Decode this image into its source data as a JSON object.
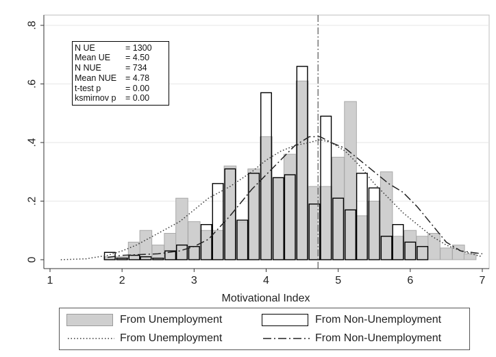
{
  "chart_data": {
    "type": "bar",
    "xlabel": "Motivational Index",
    "ylabel": "",
    "xlim": [
      1,
      7
    ],
    "ylim": [
      0,
      0.8
    ],
    "xticks": [
      "1",
      "2",
      "3",
      "4",
      "5",
      "6",
      "7"
    ],
    "yticks": [
      "0",
      ".2",
      ".4",
      ".6",
      ".8"
    ],
    "grid": true,
    "vline_x": 4.72,
    "bin_width": 0.1667,
    "series": [
      {
        "name": "From Unemployment",
        "kind": "histogram",
        "color": "#cfcfcf",
        "x": [
          1.83,
          2.0,
          2.17,
          2.33,
          2.5,
          2.67,
          2.83,
          3.0,
          3.17,
          3.33,
          3.5,
          3.67,
          3.83,
          4.0,
          4.17,
          4.33,
          4.5,
          4.67,
          4.83,
          5.0,
          5.17,
          5.33,
          5.5,
          5.67,
          5.83,
          6.0,
          6.17,
          6.33,
          6.5,
          6.67,
          6.83
        ],
        "values": [
          0.01,
          0.01,
          0.06,
          0.1,
          0.05,
          0.09,
          0.21,
          0.13,
          0.1,
          0.1,
          0.32,
          0.13,
          0.31,
          0.42,
          0.28,
          0.36,
          0.61,
          0.25,
          0.25,
          0.35,
          0.54,
          0.15,
          0.2,
          0.3,
          0.08,
          0.1,
          0.08,
          0.09,
          0.04,
          0.05,
          0.02
        ]
      },
      {
        "name": "From Non-Unemployment",
        "kind": "histogram",
        "color": "#ffffff",
        "x": [
          1.83,
          2.0,
          2.17,
          2.33,
          2.5,
          2.67,
          2.83,
          3.0,
          3.17,
          3.33,
          3.5,
          3.67,
          3.83,
          4.0,
          4.17,
          4.33,
          4.5,
          4.67,
          4.83,
          5.0,
          5.17,
          5.33,
          5.5,
          5.67,
          5.83,
          6.0,
          6.17,
          6.33,
          6.5,
          6.67,
          6.83
        ],
        "values": [
          0.025,
          0.005,
          0.015,
          0.01,
          0.005,
          0.03,
          0.05,
          0.045,
          0.12,
          0.26,
          0.31,
          0.135,
          0.295,
          0.57,
          0.28,
          0.29,
          0.66,
          0.19,
          0.49,
          0.21,
          0.17,
          0.295,
          0.245,
          0.08,
          0.12,
          0.06,
          0.045,
          0.0,
          0.0,
          0.0,
          0.0
        ]
      },
      {
        "name": "From Unemployment",
        "kind": "density",
        "line_style": "dotted",
        "color": "#333333",
        "x": [
          1.15,
          1.5,
          1.8,
          2.0,
          2.2,
          2.5,
          2.8,
          3.0,
          3.2,
          3.5,
          3.8,
          4.0,
          4.2,
          4.4,
          4.6,
          4.75,
          4.9,
          5.1,
          5.3,
          5.5,
          5.7,
          5.9,
          6.1,
          6.3,
          6.5,
          6.7,
          7.0
        ],
        "values": [
          0.0,
          0.003,
          0.015,
          0.03,
          0.05,
          0.09,
          0.13,
          0.17,
          0.21,
          0.25,
          0.3,
          0.34,
          0.37,
          0.39,
          0.4,
          0.41,
          0.4,
          0.37,
          0.32,
          0.26,
          0.21,
          0.16,
          0.12,
          0.08,
          0.05,
          0.03,
          0.01
        ]
      },
      {
        "name": "From Non-Unemployment",
        "kind": "density",
        "line_style": "dashdot",
        "color": "#222222",
        "x": [
          1.8,
          2.0,
          2.5,
          2.8,
          3.0,
          3.2,
          3.5,
          3.8,
          4.0,
          4.2,
          4.4,
          4.6,
          4.75,
          4.9,
          5.1,
          5.3,
          5.5,
          5.7,
          5.9,
          6.1,
          6.3,
          6.5,
          6.7,
          7.0
        ],
        "values": [
          0.008,
          0.015,
          0.02,
          0.03,
          0.045,
          0.07,
          0.15,
          0.24,
          0.29,
          0.34,
          0.39,
          0.42,
          0.42,
          0.4,
          0.38,
          0.34,
          0.3,
          0.26,
          0.23,
          0.18,
          0.12,
          0.06,
          0.03,
          0.02
        ]
      }
    ],
    "annotations": [
      {
        "label": "N UE",
        "value": "= 1300"
      },
      {
        "label": "Mean UE",
        "value": "= 4.50"
      },
      {
        "label": "N NUE",
        "value": "= 734"
      },
      {
        "label": "Mean NUE",
        "value": "= 4.78"
      },
      {
        "label": "t-test p",
        "value": "= 0.00"
      },
      {
        "label": "ksmirnov p",
        "value": "= 0.00"
      }
    ],
    "legend": {
      "placement": "bottom",
      "entries": [
        "From Unemployment",
        "From Non-Unemployment",
        "From Unemployment",
        "From Non-Unemployment"
      ]
    }
  }
}
